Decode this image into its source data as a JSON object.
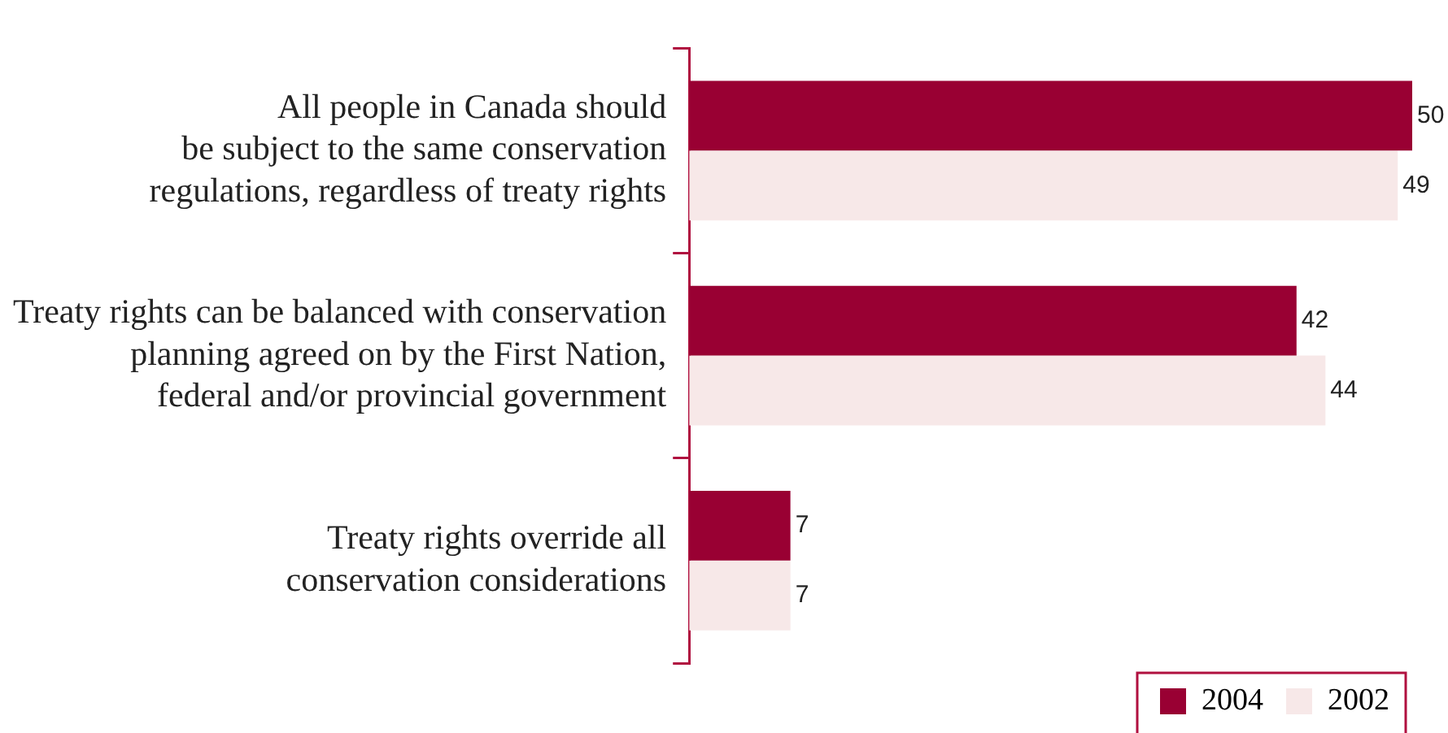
{
  "chart_data": {
    "type": "bar",
    "orientation": "horizontal",
    "categories": [
      "All people in Canada should\nbe subject to the same conservation\nregulations, regardless of treaty rights",
      "Treaty rights can be balanced with conservation\nplanning agreed on by the First Nation,\nfederal and/or provincial government",
      "Treaty rights override all\nconservation considerations"
    ],
    "series": [
      {
        "name": "2004",
        "color": "#990033",
        "values": [
          50,
          42,
          7
        ]
      },
      {
        "name": "2002",
        "color": "#f7e8e8",
        "values": [
          49,
          44,
          7
        ]
      }
    ],
    "data_labels": true,
    "legend": "bottom right"
  }
}
